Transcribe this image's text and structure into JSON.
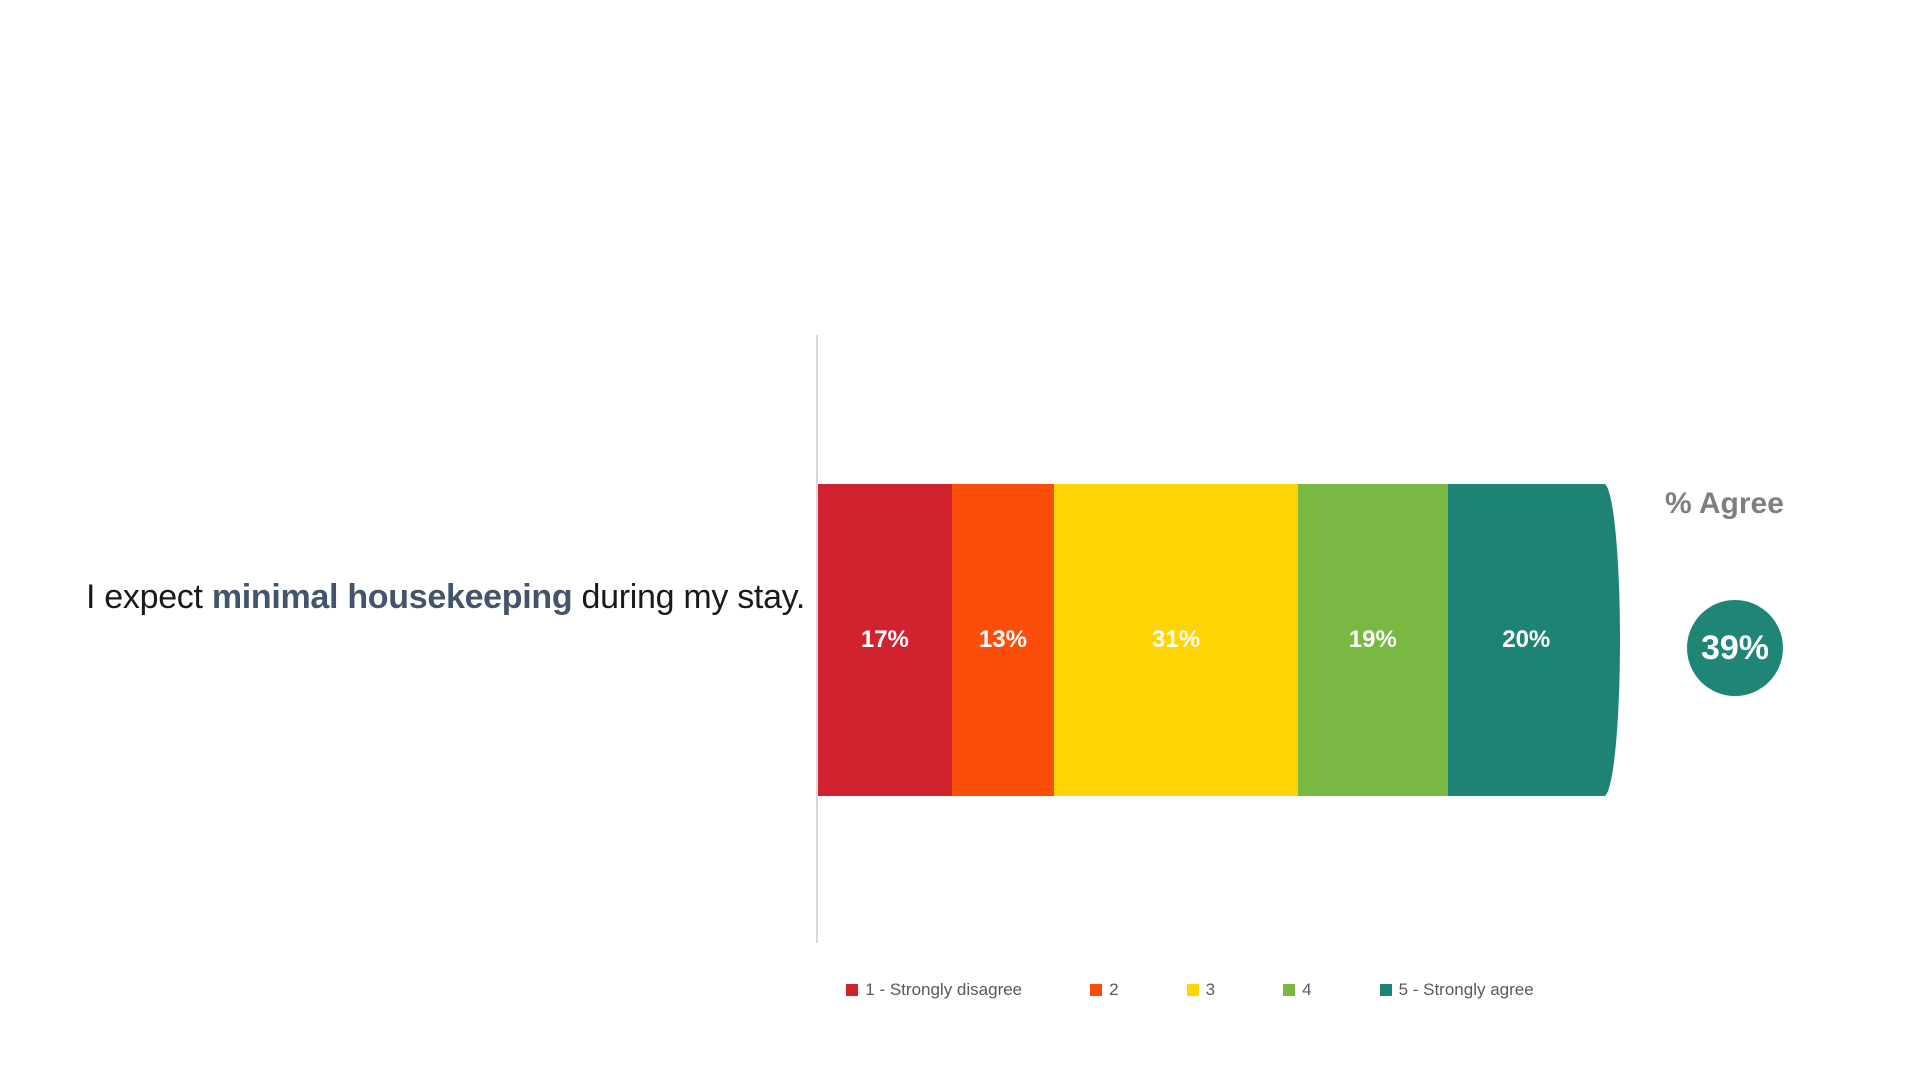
{
  "statement": {
    "prefix": "I expect ",
    "emphasis": "minimal housekeeping",
    "suffix": " during my stay.",
    "emphasis_color": "#44546A"
  },
  "agree": {
    "header": "% Agree",
    "value": "39%",
    "circle_color": "#1F8576"
  },
  "chart_data": {
    "type": "bar",
    "orientation": "horizontal-stacked",
    "statement": "I expect minimal housekeeping during my stay.",
    "categories": [
      "1 - Strongly disagree",
      "2",
      "3",
      "4",
      "5 - Strongly agree"
    ],
    "values": [
      17,
      13,
      31,
      19,
      20
    ],
    "unit": "%",
    "segments": [
      {
        "name": "1 - Strongly disagree",
        "value": 17,
        "label": "17%",
        "color": "#D0232F"
      },
      {
        "name": "2",
        "value": 13,
        "label": "13%",
        "color": "#FB4E0B"
      },
      {
        "name": "3",
        "value": 31,
        "label": "31%",
        "color": "#FFD405"
      },
      {
        "name": "4",
        "value": 19,
        "label": "19%",
        "color": "#78B843"
      },
      {
        "name": "5 - Strongly agree",
        "value": 20,
        "label": "20%",
        "color": "#1D8374"
      }
    ],
    "percent_agree": 39,
    "legend_position": "bottom",
    "axis_color": "#D9D9D9",
    "xlim": [
      0,
      100
    ],
    "grid": false
  }
}
